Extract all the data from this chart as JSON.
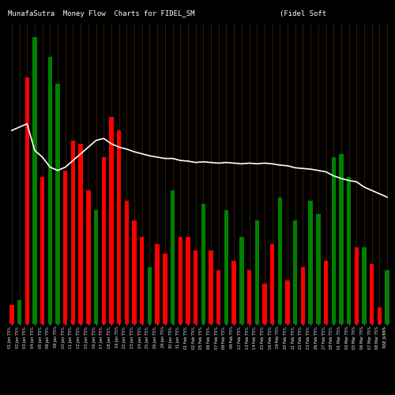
{
  "title": "MunafaSutra  Money Flow  Charts for FIDEL_SM                    (Fidel Soft",
  "background_color": "#000000",
  "bar_colors": [
    "red",
    "green",
    "red",
    "green",
    "red",
    "green",
    "green",
    "red",
    "red",
    "red",
    "red",
    "green",
    "red",
    "red",
    "red",
    "red",
    "red",
    "red",
    "green",
    "red",
    "red",
    "green",
    "red",
    "red",
    "red",
    "green",
    "red",
    "red",
    "green",
    "red",
    "green",
    "red",
    "green",
    "red",
    "red",
    "green",
    "red",
    "green",
    "red",
    "green",
    "green",
    "red",
    "green",
    "green",
    "green",
    "red",
    "green",
    "red",
    "red",
    "green"
  ],
  "bar_heights": [
    28,
    35,
    370,
    430,
    220,
    400,
    360,
    230,
    275,
    270,
    200,
    170,
    250,
    310,
    290,
    185,
    155,
    130,
    85,
    120,
    105,
    200,
    130,
    130,
    110,
    180,
    110,
    80,
    170,
    95,
    130,
    80,
    155,
    60,
    120,
    190,
    65,
    155,
    85,
    185,
    165,
    95,
    250,
    255,
    220,
    115,
    115,
    90,
    25,
    80
  ],
  "line_values": [
    290,
    295,
    300,
    260,
    250,
    235,
    230,
    235,
    245,
    255,
    265,
    275,
    278,
    270,
    265,
    262,
    258,
    255,
    252,
    250,
    248,
    248,
    245,
    244,
    242,
    243,
    242,
    241,
    242,
    241,
    240,
    241,
    240,
    241,
    240,
    238,
    237,
    234,
    233,
    232,
    230,
    228,
    222,
    218,
    215,
    213,
    205,
    200,
    195,
    190
  ],
  "x_labels": [
    "01 Jan 75%",
    "02 Jan 75%",
    "03 Jan 75%",
    "04 Jan 75%",
    "05 Jan 75%",
    "08 Jan 75%",
    "09 Jan 75%",
    "10 Jan 75%",
    "11 Jan 75%",
    "12 Jan 75%",
    "15 Jan 75%",
    "16 Jan 75%",
    "17 Jan 75%",
    "18 Jan 75%",
    "19 Jan 75%",
    "22 Jan 75%",
    "23 Jan 75%",
    "24 Jan 75%",
    "25 Jan 75%",
    "26 Jan 75%",
    "29 Jan 75%",
    "30 Jan 75%",
    "31 Jan 75%",
    "01 Feb 75%",
    "02 Feb 75%",
    "05 Feb 75%",
    "06 Feb 75%",
    "07 Feb 75%",
    "08 Feb 75%",
    "09 Feb 75%",
    "12 Feb 75%",
    "13 Feb 75%",
    "14 Feb 75%",
    "15 Feb 75%",
    "16 Feb 75%",
    "19 Feb 75%",
    "20 Feb 75%",
    "21 Feb 75%",
    "22 Feb 75%",
    "23 Feb 75%",
    "26 Feb 75%",
    "27 Feb 75%",
    "28 Feb 75%",
    "01 Mar 75%",
    "02 Mar 75%",
    "05 Mar 75%",
    "06 Mar 75%",
    "07 Mar 75%",
    "08 Mar 75%",
    "NSE JUMPS"
  ],
  "dark_orange_lines": true,
  "line_color": "#ffffff",
  "text_color": "#ffffff",
  "title_fontsize": 6.5,
  "tick_fontsize": 3.5,
  "ylim_max": 450,
  "bar_width": 0.55
}
